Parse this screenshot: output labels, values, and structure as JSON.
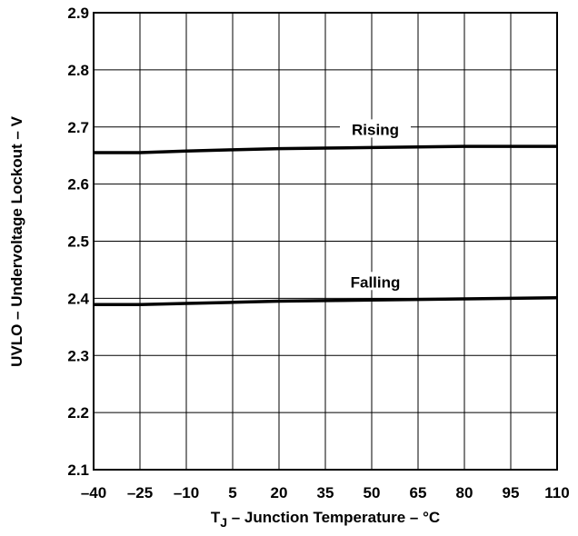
{
  "chart_data": {
    "type": "line",
    "title": "",
    "xlabel": "T",
    "xlabel_sub": "J",
    "xlabel_rest": " – Junction Temperature – °C",
    "ylabel": "UVLO – Undervoltage Lockout – V",
    "xlim": [
      -40,
      110
    ],
    "ylim": [
      2.1,
      2.9
    ],
    "x_ticks": [
      -40,
      -25,
      -10,
      5,
      20,
      35,
      50,
      65,
      80,
      95,
      110
    ],
    "x_tick_labels": [
      "–40",
      "–25",
      "–10",
      "5",
      "20",
      "35",
      "50",
      "65",
      "80",
      "95",
      "110"
    ],
    "y_ticks": [
      2.1,
      2.2,
      2.3,
      2.4,
      2.5,
      2.6,
      2.7,
      2.8,
      2.9
    ],
    "y_tick_labels": [
      "2.1",
      "2.2",
      "2.3",
      "2.4",
      "2.5",
      "2.6",
      "2.7",
      "2.8",
      "2.9"
    ],
    "grid": true,
    "legend": "none",
    "series": [
      {
        "name": "Rising",
        "color": "#000000",
        "x": [
          -40,
          -25,
          -10,
          5,
          20,
          35,
          50,
          65,
          80,
          95,
          110
        ],
        "y": [
          2.655,
          2.655,
          2.658,
          2.66,
          2.662,
          2.663,
          2.664,
          2.665,
          2.666,
          2.666,
          2.666
        ]
      },
      {
        "name": "Falling",
        "color": "#000000",
        "x": [
          -40,
          -25,
          -10,
          5,
          20,
          35,
          50,
          65,
          80,
          95,
          110
        ],
        "y": [
          2.389,
          2.389,
          2.391,
          2.393,
          2.395,
          2.396,
          2.397,
          2.398,
          2.399,
          2.4,
          2.401
        ]
      }
    ]
  }
}
